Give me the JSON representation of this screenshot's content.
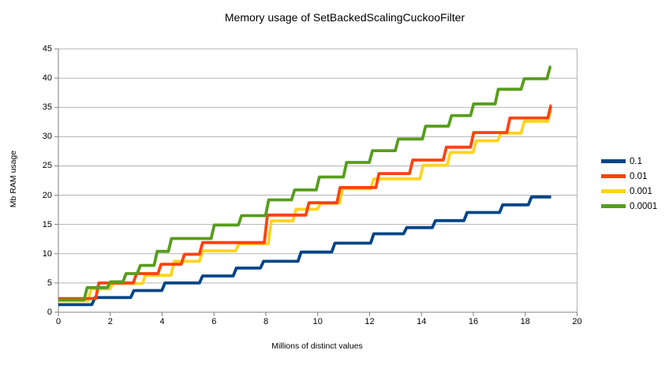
{
  "title": "Memory usage of SetBackedScalingCuckooFilter",
  "y_axis": {
    "title": "Mb RAM usage",
    "min": 0,
    "max": 45,
    "step": 5
  },
  "x_axis": {
    "title": "Millions of distinct values",
    "min": 0,
    "max": 20,
    "step": 2
  },
  "legend": {
    "position": "right",
    "entries": [
      {
        "label": "0.1",
        "color": "#004586"
      },
      {
        "label": "0.01",
        "color": "#ff420e"
      },
      {
        "label": "0.001",
        "color": "#ffd320"
      },
      {
        "label": "0.0001",
        "color": "#579d1c"
      }
    ]
  },
  "colors": {
    "gridline": "#b3b3b3",
    "axis": "#808080",
    "text": "#000000",
    "background": "#ffffff"
  },
  "chart_data": {
    "type": "line",
    "step_style": true,
    "title": "Memory usage of SetBackedScalingCuckooFilter",
    "xlabel": "Millions of distinct values",
    "ylabel": "Mb RAM usage",
    "xlim": [
      0,
      20
    ],
    "ylim": [
      0,
      45
    ],
    "x_end": 19.0,
    "grid": "horizontal",
    "legend_position": "right",
    "series": [
      {
        "name": "0.1",
        "color": "#004586",
        "steps": [
          [
            0,
            1.3
          ],
          [
            1.35,
            2.5
          ],
          [
            2.85,
            3.7
          ],
          [
            4.05,
            5.0
          ],
          [
            5.5,
            6.2
          ],
          [
            6.8,
            7.55
          ],
          [
            7.85,
            8.7
          ],
          [
            9.3,
            10.3
          ],
          [
            10.6,
            11.8
          ],
          [
            12.1,
            13.4
          ],
          [
            13.37,
            14.45
          ],
          [
            14.48,
            15.65
          ],
          [
            15.7,
            17.05
          ],
          [
            17.07,
            18.35
          ],
          [
            18.18,
            19.7
          ]
        ]
      },
      {
        "name": "0.01",
        "color": "#ff420e",
        "steps": [
          [
            0,
            2.35
          ],
          [
            1.5,
            5.0
          ],
          [
            2.95,
            6.6
          ],
          [
            3.9,
            8.2
          ],
          [
            4.8,
            9.9
          ],
          [
            5.5,
            11.9
          ],
          [
            8.0,
            16.6
          ],
          [
            9.6,
            18.7
          ],
          [
            10.8,
            21.3
          ],
          [
            12.3,
            23.7
          ],
          [
            13.6,
            26.0
          ],
          [
            14.9,
            28.2
          ],
          [
            15.95,
            30.7
          ],
          [
            17.35,
            33.2
          ],
          [
            18.93,
            35.3
          ]
        ]
      },
      {
        "name": "0.001",
        "color": "#ffd320",
        "steps": [
          [
            0,
            1.95
          ],
          [
            1.2,
            4.0
          ],
          [
            2.05,
            4.9
          ],
          [
            3.3,
            6.3
          ],
          [
            4.4,
            8.7
          ],
          [
            5.5,
            10.5
          ],
          [
            6.9,
            11.7
          ],
          [
            8.15,
            15.6
          ],
          [
            9.1,
            17.6
          ],
          [
            10.05,
            18.6
          ],
          [
            10.9,
            21.1
          ],
          [
            12.1,
            22.8
          ],
          [
            14.0,
            25.1
          ],
          [
            15.05,
            27.3
          ],
          [
            16.05,
            29.3
          ],
          [
            17.0,
            30.6
          ],
          [
            17.9,
            32.6
          ],
          [
            18.93,
            34.5
          ]
        ]
      },
      {
        "name": "0.0001",
        "color": "#579d1c",
        "steps": [
          [
            0,
            2.1
          ],
          [
            1.05,
            4.2
          ],
          [
            1.95,
            5.2
          ],
          [
            2.55,
            6.6
          ],
          [
            3.1,
            8.0
          ],
          [
            3.75,
            10.4
          ],
          [
            4.3,
            12.6
          ],
          [
            5.95,
            14.9
          ],
          [
            7.0,
            16.5
          ],
          [
            8.05,
            19.2
          ],
          [
            9.05,
            20.9
          ],
          [
            10.0,
            23.1
          ],
          [
            11.05,
            25.6
          ],
          [
            12.05,
            27.6
          ],
          [
            13.05,
            29.6
          ],
          [
            14.1,
            31.8
          ],
          [
            15.1,
            33.6
          ],
          [
            15.95,
            35.6
          ],
          [
            16.9,
            38.1
          ],
          [
            17.9,
            39.9
          ],
          [
            18.9,
            41.9
          ]
        ]
      }
    ]
  }
}
